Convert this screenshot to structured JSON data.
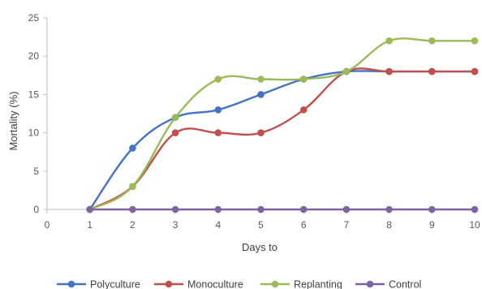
{
  "chart_data": {
    "type": "line",
    "title": "",
    "xlabel": "Days to",
    "ylabel": "Mortality (%)",
    "x_ticks": [
      "0",
      "1",
      "2",
      "3",
      "4",
      "5",
      "6",
      "7",
      "8",
      "9",
      "10"
    ],
    "y_ticks": [
      "0",
      "5",
      "10",
      "15",
      "20",
      "25"
    ],
    "xlim": [
      0,
      10
    ],
    "ylim": [
      0,
      25
    ],
    "grid": false,
    "legend_position": "bottom",
    "x": [
      1,
      2,
      3,
      4,
      5,
      6,
      7,
      8,
      9,
      10
    ],
    "series": [
      {
        "name": "Polyculture",
        "color": "#4472c4",
        "values": [
          0,
          8,
          12,
          13,
          15,
          17,
          18,
          18,
          18,
          18
        ]
      },
      {
        "name": "Monoculture",
        "color": "#c0504d",
        "values": [
          0,
          3,
          10,
          10,
          10,
          13,
          18,
          18,
          18,
          18
        ]
      },
      {
        "name": "Replanting",
        "color": "#9bbb59",
        "values": [
          0,
          3,
          12,
          17,
          17,
          17,
          18,
          22,
          22,
          22
        ]
      },
      {
        "name": "Control",
        "color": "#8064a2",
        "values": [
          0,
          0,
          0,
          0,
          0,
          0,
          0,
          0,
          0,
          0
        ]
      }
    ]
  }
}
